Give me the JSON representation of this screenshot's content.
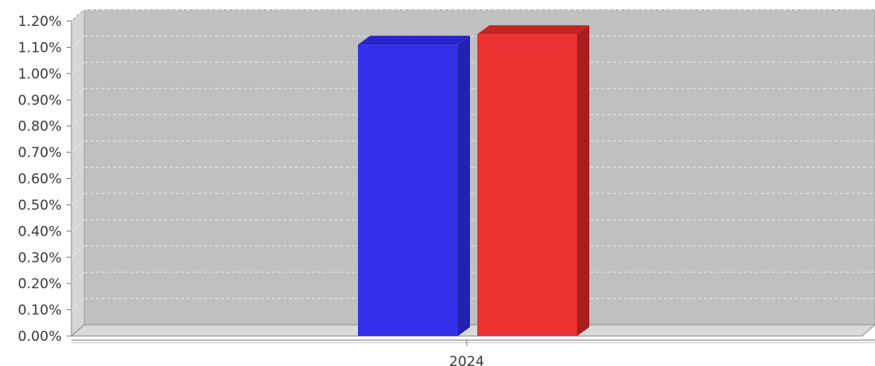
{
  "chart_data": {
    "type": "bar",
    "style": "3d",
    "categories": [
      "2024"
    ],
    "series": [
      {
        "values": [
          1.11
        ],
        "color": "#3131EC",
        "side_color": "#2222B0",
        "top_color": "#2626C8"
      },
      {
        "values": [
          1.15
        ],
        "color": "#EC3131",
        "side_color": "#A81E1E",
        "top_color": "#C42424"
      }
    ],
    "ylim": [
      0,
      1.2
    ],
    "ystep": 0.1,
    "ytick_labels": [
      "0.00%",
      "0.10%",
      "0.20%",
      "0.30%",
      "0.40%",
      "0.50%",
      "0.60%",
      "0.70%",
      "0.80%",
      "0.90%",
      "1.00%",
      "1.10%",
      "1.20%"
    ],
    "grid": true,
    "plot_bg": "#C0C0C0",
    "floor_color": "#DADADA",
    "legend": "none"
  }
}
